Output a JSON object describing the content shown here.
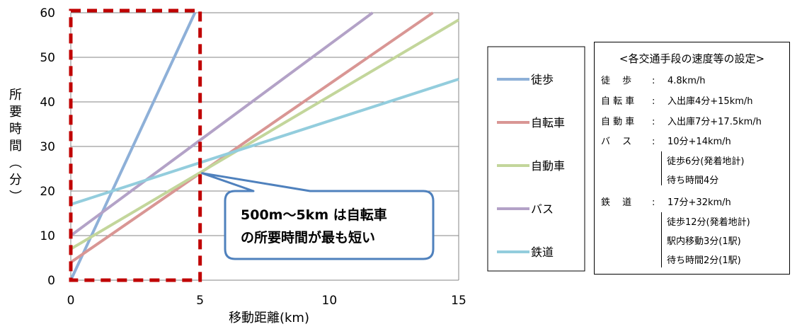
{
  "chart_data": {
    "type": "line",
    "xlabel": "移動距離(km)",
    "ylabel": "所要時間(分)",
    "xlim": [
      0,
      15
    ],
    "ylim": [
      0,
      60
    ],
    "x_ticks": [
      "0",
      "5",
      "10",
      "15"
    ],
    "y_ticks": [
      "0",
      "10",
      "20",
      "30",
      "40",
      "50",
      "60"
    ],
    "grid": "horizontal",
    "legend_position": "right",
    "series": [
      {
        "name": "徒歩",
        "color": "#8eb0d8",
        "x": [
          0,
          4.8
        ],
        "y": [
          0,
          60
        ]
      },
      {
        "name": "自転車",
        "color": "#d99694",
        "x": [
          0,
          14.0
        ],
        "y": [
          4,
          60
        ]
      },
      {
        "name": "自動車",
        "color": "#c3d69b",
        "x": [
          0,
          15.0
        ],
        "y": [
          7,
          58.4
        ]
      },
      {
        "name": "バス",
        "color": "#b3a2c7",
        "x": [
          0,
          11.67
        ],
        "y": [
          10,
          60
        ]
      },
      {
        "name": "鉄道",
        "color": "#93cddd",
        "x": [
          0,
          15.0
        ],
        "y": [
          17,
          45.1
        ]
      }
    ],
    "annotations": [
      {
        "text_line1": "500m〜5km は自転車",
        "text_line2": "の所要時間が最も短い",
        "pointer_x": 5,
        "pointer_y": 24
      }
    ],
    "highlight_range": {
      "x": [
        0,
        5
      ],
      "y": [
        0,
        60
      ]
    }
  },
  "settings": {
    "title": "<各交通手段の速度等の設定>",
    "rows": [
      {
        "name": "徒　 歩",
        "colon": ":",
        "value": "4.8km/h"
      },
      {
        "name": "自 転 車",
        "colon": ":",
        "value": "入出庫4分+15km/h"
      },
      {
        "name": "自 動 車",
        "colon": ":",
        "value": "入出庫7分+17.5km/h"
      },
      {
        "name": "バ　 ス",
        "colon": ":",
        "value": "10分+14km/h"
      },
      {
        "name": "鉄　 道",
        "colon": ":",
        "value": "17分+32km/h"
      }
    ],
    "bus_details": [
      "徒歩6分(発着地計)",
      "待ち時間4分"
    ],
    "rail_details": [
      "徒歩12分(発着地計)",
      "駅内移動3分(1駅)",
      "待ち時間2分(1駅)"
    ]
  },
  "colors": {
    "highlight_box": "#c00000",
    "callout_border": "#4f81bd",
    "gridline": "#868686"
  }
}
